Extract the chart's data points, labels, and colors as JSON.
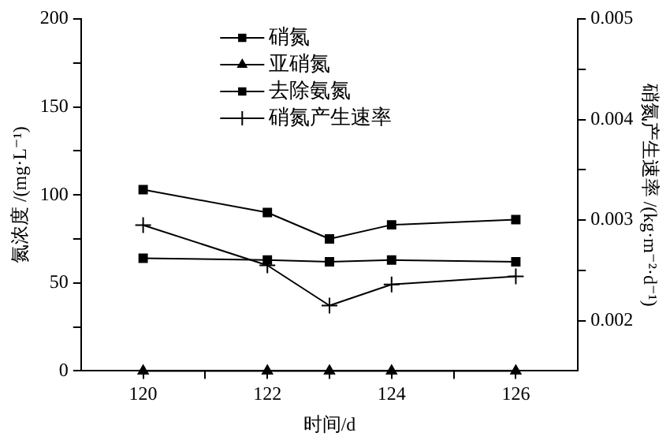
{
  "chart_data": {
    "type": "line",
    "xlabel": "时间/d",
    "ylabel": "氮浓度 /(mg·L⁻¹)",
    "y2label": "硝氮产生速率 /(kg·m⁻²·d⁻¹)",
    "x": [
      120,
      122,
      123,
      124,
      126
    ],
    "series": [
      {
        "name": "硝氮",
        "color": "#000000",
        "marker": "square",
        "values": [
          103,
          90,
          75,
          83,
          86
        ]
      },
      {
        "name": "亚硝氮",
        "color": "#000000",
        "marker": "triangle",
        "values": [
          0,
          0,
          0,
          0,
          0
        ]
      },
      {
        "name": "去除氨氮",
        "color": "#000000",
        "marker": "square",
        "values": [
          64,
          63,
          62,
          63,
          62
        ]
      },
      {
        "name": "硝氮产生速率",
        "color": "#000000",
        "marker": "cross",
        "axis": "y2",
        "values": [
          0.00295,
          0.00255,
          0.00215,
          0.00236,
          0.00244
        ]
      }
    ],
    "xlim": [
      119,
      127
    ],
    "xticks": [
      120,
      {
        "value": 121,
        "label": null
      },
      122,
      {
        "value": 123,
        "label": null
      },
      124,
      {
        "value": 125,
        "label": null
      },
      126
    ],
    "ylim": [
      0,
      200
    ],
    "yticks": [
      0,
      {
        "value": 25,
        "label": null
      },
      50,
      {
        "value": 75,
        "label": null
      },
      100,
      {
        "value": 125,
        "label": null
      },
      150,
      {
        "value": 175,
        "label": null
      },
      200
    ],
    "y2lim": [
      0.0015,
      0.005
    ],
    "y2ticks": [
      0.002,
      {
        "value": 0.0025,
        "label": null
      },
      0.003,
      {
        "value": 0.0035,
        "label": null
      },
      0.004,
      {
        "value": 0.0045,
        "label": null
      },
      0.005
    ],
    "grid": false,
    "legend": "top"
  }
}
